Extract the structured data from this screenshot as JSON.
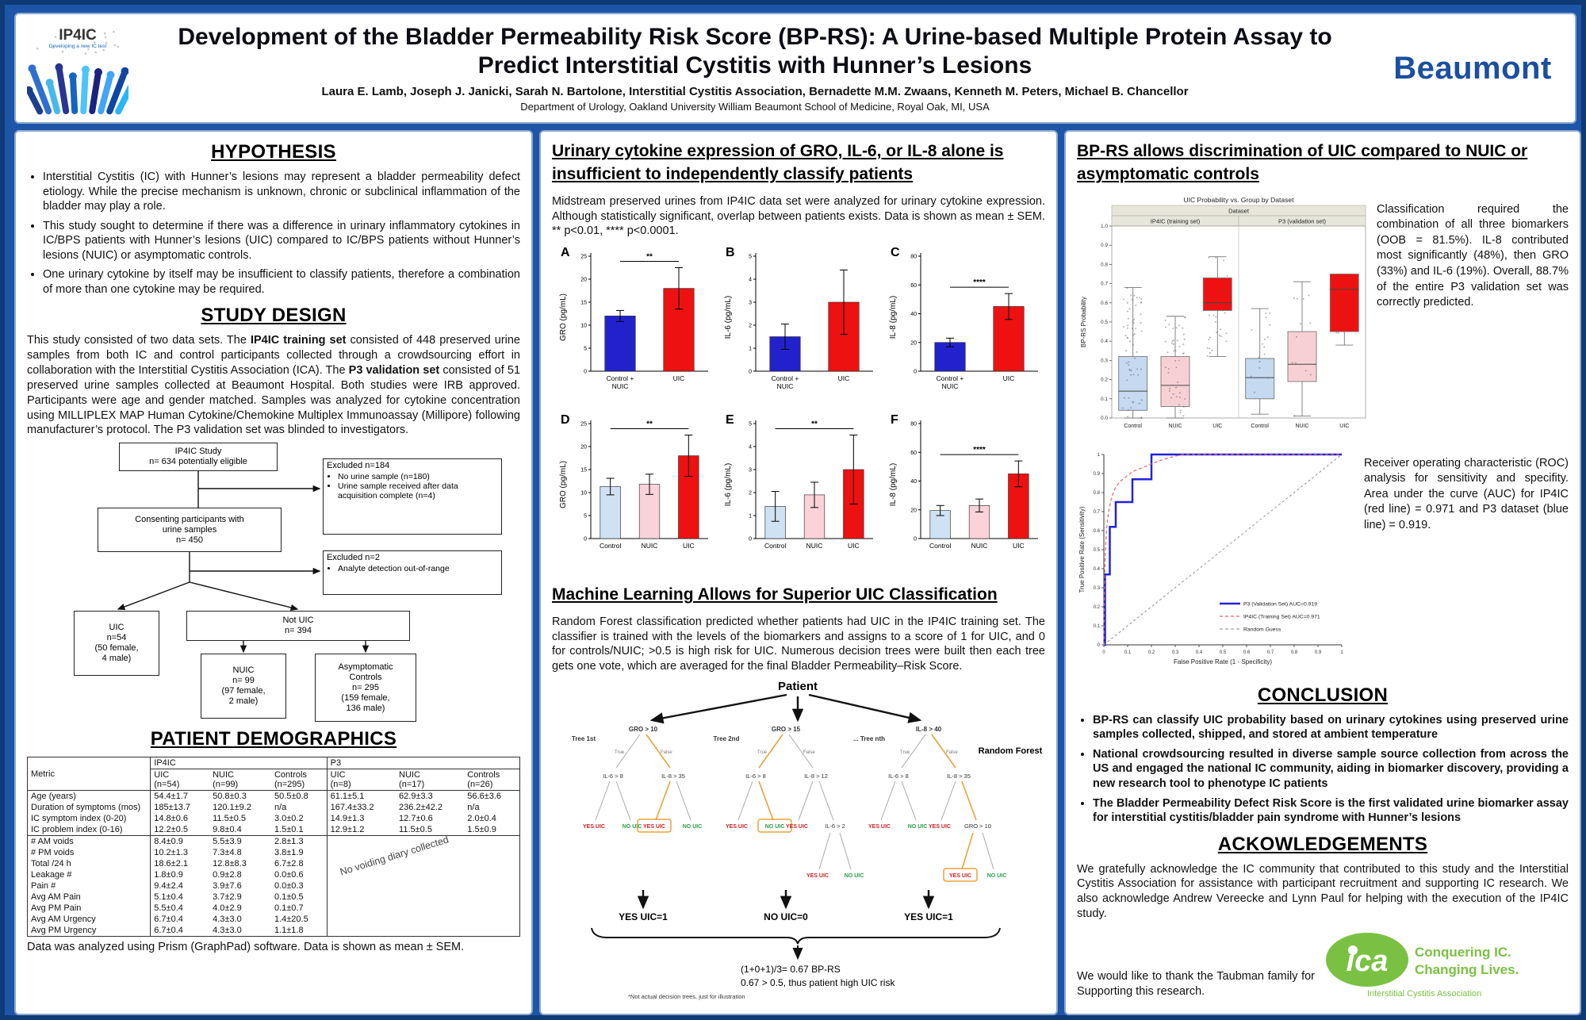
{
  "header": {
    "logo": {
      "text": "IP4IC",
      "sub": "Developing a new IC test"
    },
    "title1": "Development of the Bladder Permeability Risk Score (BP-RS): A Urine-based Multiple Protein Assay to",
    "title2": "Predict Interstitial Cystitis with Hunner’s Lesions",
    "authors": "Laura E. Lamb, Joseph J. Janicki, Sarah N. Bartolone, Interstitial Cystitis Association, Bernadette M.M. Zwaans,  Kenneth M. Peters, Michael B. Chancellor",
    "affiliation": "Department of Urology, Oakland University William Beaumont School of Medicine, Royal Oak, MI, USA",
    "brand": "Beaumont"
  },
  "left": {
    "hypothesis": {
      "title": "HYPOTHESIS",
      "bullets": [
        "Interstitial Cystitis (IC) with Hunner’s lesions may represent a bladder permeability defect etiology. While the precise mechanism is unknown, chronic or subclinical inflammation of the bladder may play a role.",
        "This study sought to determine if there was a difference in urinary inflammatory cytokines in IC/BPS patients with Hunner’s lesions (UIC) compared to IC/BPS patients without Hunner’s lesions (NUIC) or asymptomatic controls.",
        "One urinary cytokine by itself may be insufficient to classify patients, therefore a combination of more than one cytokine may be required."
      ]
    },
    "study": {
      "title": "STUDY DESIGN",
      "p1": "This study consisted of two data sets. The ",
      "b1": "IP4IC training set",
      "p2": " consisted of 448 preserved urine samples from both IC and control participants collected through a crowdsourcing effort in collaboration with the Interstitial Cystitis Association (ICA). The ",
      "b2": "P3 validation set",
      "p3": " consisted of 51 preserved urine samples collected at Beaumont Hospital. Both studies were IRB approved. Participants were age and gender matched. Samples was analyzed for cytokine concentration using MILLIPLEX MAP Human Cytokine/Chemokine Multiplex Immunoassay (Millipore) following manufacturer’s protocol. The P3 validation set was blinded to investigators."
    },
    "flowchart": {
      "ip4ic": [
        "IP4IC Study",
        "n= 634 potentially eligible"
      ],
      "excluded1_title": "Excluded n=184",
      "excluded1_bullets": [
        "No urine sample (n=180)",
        "Urine sample received after data acquisition complete (n=4)"
      ],
      "consenting": [
        "Consenting participants with",
        "urine samples",
        "n= 450"
      ],
      "excluded2_title": "Excluded n=2",
      "excluded2_bullets": [
        "Analyte detection out-of-range"
      ],
      "uic": [
        "UIC",
        "n=54",
        "(50 female,",
        "4 male)"
      ],
      "notuic": [
        "Not UIC",
        "n= 394"
      ],
      "nuic": [
        "NUIC",
        "n= 99",
        "(97 female,",
        "2 male)"
      ],
      "asym": [
        "Asymptomatic",
        "Controls",
        "n= 295",
        "(159 female,",
        "136 male)"
      ]
    },
    "demographics": {
      "title": "PATIENT DEMOGRAPHICS",
      "table": {
        "metric_header": "Metric",
        "group_headers": [
          "IP4IC",
          "P3"
        ],
        "sub_headers": [
          [
            "UIC",
            "(n=54)"
          ],
          [
            "NUIC",
            "(n=99)"
          ],
          [
            "Controls",
            "(n=295)"
          ],
          [
            "UIC",
            "(n=8)"
          ],
          [
            "NUIC",
            "(n=17)"
          ],
          [
            "Controls",
            "(n=26)"
          ]
        ],
        "rows": [
          [
            "Age (years)",
            "54.4±1.7",
            "50.8±0.3",
            "50.5±0.8",
            "61.1±5.1",
            "62.9±3.3",
            "56.6±3.6"
          ],
          [
            "Duration of symptoms (mos)",
            "185±13.7",
            "120.1±9.2",
            "n/a",
            "167.4±33.2",
            "236.2±42.2",
            "n/a"
          ],
          [
            "IC symptom index (0-20)",
            "14.8±0.6",
            "11.5±0.5",
            "3.0±0.2",
            "14.9±1.3",
            "12.7±0.6",
            "2.0±0.4"
          ],
          [
            "IC problem index (0-16)",
            "12.2±0.5",
            "9.8±0.4",
            "1.5±0.1",
            "12.9±1.2",
            "11.5±0.5",
            "1.5±0.9"
          ],
          [
            "# AM voids",
            "8.4±0.9",
            "5.5±3.9",
            "2.8±1.3",
            "",
            "",
            ""
          ],
          [
            "# PM voids",
            "10.2±1.3",
            "7.3±4.8",
            "3.8±1.9",
            "",
            "",
            ""
          ],
          [
            "Total /24 h",
            "18.6±2.1",
            "12.8±8.3",
            "6.7±2.8",
            "",
            "",
            ""
          ],
          [
            "Leakage #",
            "1.8±0.9",
            "0.9±2.8",
            "0.0±0.6",
            "",
            "",
            ""
          ],
          [
            "Pain #",
            "9.4±2.4",
            "3.9±7.6",
            "0.0±0.3",
            "",
            "",
            ""
          ],
          [
            "Avg AM Pain",
            "5.1±0.4",
            "3.7±2.9",
            "0.1±0.5",
            "",
            "",
            ""
          ],
          [
            "Avg PM Pain",
            "5.5±0.4",
            "4.0±2.9",
            "0.1±0.7",
            "",
            "",
            ""
          ],
          [
            "Avg AM Urgency",
            "6.7±0.4",
            "4.3±3.0",
            "1.4±20.5",
            "",
            "",
            ""
          ],
          [
            "Avg PM Urgency",
            "6.7±0.4",
            "4.3±3.0",
            "1.1±1.8",
            "",
            "",
            ""
          ]
        ],
        "diagonal_note": "No voiding diary collected"
      },
      "note": "Data was analyzed using Prism (GraphPad) software. Data is shown as mean ± SEM."
    }
  },
  "middle": {
    "banner": "Urinary cytokine expression of GRO, IL-6, or IL-8 alone is insufficient to independently classify patients",
    "intro": "Midstream preserved urines from IP4IC data set were analyzed for urinary cytokine expression. Although statistically significant, overlap between patients exists. Data is shown as mean ± SEM. ** p<0.01, **** p<0.0001.",
    "ml_title": "Machine Learning Allows for Superior UIC Classification",
    "ml_text": "Random Forest classification predicted whether patients had UIC in the IP4IC training set. The classifier is trained with the levels of the biomarkers and assigns to a score of 1 for UIC, and 0 for controls/NUIC; >0.5 is high risk for UIC. Numerous decision trees were built then each tree gets one vote, which are averaged for the final Bladder Permeability–Risk Score.",
    "forest": {
      "patient_label": "Patient",
      "forest_label": "Random Forest",
      "tree_labels": [
        "Tree 1st",
        "Tree 2nd",
        "... Tree nth"
      ],
      "true_label": "True",
      "false_label": "False",
      "yes_leaf": "YES UIC",
      "no_leaf": "NO UIC",
      "trees": [
        {
          "root": "GRO > 10",
          "left": "IL-6 > 8",
          "right": "IL-8 > 35",
          "boxed": "right-left",
          "sub": null
        },
        {
          "root": "GRO > 15",
          "left": "IL-6 > 8",
          "right": "IL-8 > 12",
          "boxed": "left-right",
          "sub": {
            "pos": "right-right",
            "label": "IL-6 > 2"
          }
        },
        {
          "root": "IL-8 > 40",
          "left": "IL-6 > 8",
          "right": "IL-8 > 35",
          "boxed": "sub-left",
          "sub": {
            "pos": "right-right",
            "label": "GRO > 10"
          }
        }
      ],
      "votes": [
        "YES UIC=1",
        "NO UIC=0",
        "YES UIC=1"
      ],
      "formula_line1": "(1+0+1)/3= 0.67 BP-RS",
      "formula_line2": "0.67 > 0.5, thus patient high UIC risk",
      "footnote": "*Not actual decision trees, just for illustration"
    }
  },
  "right": {
    "banner": "BP-RS allows discrimination of UIC compared to NUIC or asymptomatic controls",
    "box_text": "Classification required the combination of all three biomarkers (OOB = 81.5%). IL-8 contributed most significantly (48%), then GRO (33%) and IL-6 (19%). Overall, 88.7% of the entire P3 validation set was correctly predicted.",
    "roc_text": "Receiver operating characteristic (ROC) analysis for sensitivity and specifity.  Area under the curve (AUC) for IP4IC (red line) = 0.971 and P3 dataset (blue line) = 0.919.",
    "conclusion": {
      "title": "CONCLUSION",
      "bullets": [
        "BP-RS can classify UIC probability based on urinary cytokines using preserved urine samples collected, shipped, and stored at ambient temperature",
        "National crowdsourcing resulted in diverse sample source collection from across the US and engaged the national IC community, aiding in biomarker discovery, providing a new research tool to phenotype IC patients",
        "The Bladder Permeability Defect Risk Score is the first validated urine biomarker assay for interstitial cystitis/bladder pain syndrome with Hunner’s lesions"
      ]
    },
    "ack": {
      "title": "ACKOWLEDGEMENTS",
      "p1": "We gratefully acknowledge the IC community that contributed to this study and the Interstitial Cystitis Association for assistance with participant recruitment and supporting IC research. We also acknowledge Andrew Vereecke and Lynn Paul for helping with the execution of the IP4IC study.",
      "p2": "We would like to thank the Taubman family for Supporting this research.",
      "ica_logo": {
        "abbr": "ica",
        "line1": "Conquering IC.",
        "line2": "Changing Lives.",
        "line3": "Interstitial Cystitis Association",
        "green": "#7ac143"
      }
    }
  },
  "chart_data": [
    {
      "id": "A",
      "type": "bar",
      "ylabel": "GRO (pg/mL)",
      "ylim": [
        0,
        25
      ],
      "yticks": [
        0,
        5,
        10,
        15,
        20,
        25
      ],
      "categories": [
        "Control +\nNUIC",
        "UIC"
      ],
      "values": [
        12,
        18
      ],
      "errors": [
        1.2,
        4.5
      ],
      "colors": [
        "#2222cc",
        "#ee1111"
      ],
      "significance": "**"
    },
    {
      "id": "B",
      "type": "bar",
      "ylabel": "IL-6 (pg/mL)",
      "ylim": [
        0,
        5
      ],
      "yticks": [
        0,
        1,
        2,
        3,
        4,
        5
      ],
      "categories": [
        "Control +\nNUIC",
        "UIC"
      ],
      "values": [
        1.5,
        3.0
      ],
      "errors": [
        0.55,
        1.4
      ],
      "colors": [
        "#2222cc",
        "#ee1111"
      ],
      "significance": ""
    },
    {
      "id": "C",
      "type": "bar",
      "ylabel": "IL-8 (pg/mL)",
      "ylim": [
        0,
        80
      ],
      "yticks": [
        0,
        20,
        40,
        60,
        80
      ],
      "categories": [
        "Control +\nNUIC",
        "UIC"
      ],
      "values": [
        20,
        45
      ],
      "errors": [
        3,
        9
      ],
      "colors": [
        "#2222cc",
        "#ee1111"
      ],
      "significance": "****"
    },
    {
      "id": "D",
      "type": "bar",
      "ylabel": "GRO (pg/mL)",
      "ylim": [
        0,
        25
      ],
      "yticks": [
        0,
        5,
        10,
        15,
        20,
        25
      ],
      "categories": [
        "Control",
        "NUIC",
        "UIC"
      ],
      "values": [
        11.3,
        11.8,
        18
      ],
      "errors": [
        1.8,
        2.2,
        4.5
      ],
      "colors": [
        "#cfe2f3",
        "#f9d3d9",
        "#ee1111"
      ],
      "significance": "**"
    },
    {
      "id": "E",
      "type": "bar",
      "ylabel": "IL-6 (pg/mL)",
      "ylim": [
        0,
        5
      ],
      "yticks": [
        0,
        1,
        2,
        3,
        4,
        5
      ],
      "categories": [
        "Control",
        "NUIC",
        "UIC"
      ],
      "values": [
        1.4,
        1.9,
        3.0
      ],
      "errors": [
        0.65,
        0.55,
        1.5
      ],
      "colors": [
        "#cfe2f3",
        "#f9d3d9",
        "#ee1111"
      ],
      "significance": "**"
    },
    {
      "id": "F",
      "type": "bar",
      "ylabel": "IL-8 (pg/mL)",
      "ylim": [
        0,
        80
      ],
      "yticks": [
        0,
        20,
        40,
        60,
        80
      ],
      "categories": [
        "Control",
        "NUIC",
        "UIC"
      ],
      "values": [
        19.5,
        23,
        45
      ],
      "errors": [
        3.5,
        4.5,
        9
      ],
      "colors": [
        "#cfe2f3",
        "#f9d3d9",
        "#ee1111"
      ],
      "significance": "****"
    },
    {
      "id": "bp_probability",
      "type": "boxplot",
      "title": "UIC Probability vs. Group by Dataset",
      "band_label": "Dataset",
      "ylabel": "BP-RS Probability",
      "ylim": [
        0,
        1
      ],
      "panels": [
        {
          "label": "IP4IC (training set)",
          "groups": [
            {
              "name": "Control",
              "color": "#c5d9f1",
              "lo": 0.0,
              "q1": 0.04,
              "med": 0.14,
              "q3": 0.32,
              "hi": 0.68
            },
            {
              "name": "NUIC",
              "color": "#f7d0d5",
              "lo": 0.0,
              "q1": 0.06,
              "med": 0.17,
              "q3": 0.32,
              "hi": 0.53
            },
            {
              "name": "UIC",
              "color": "#ee1111",
              "lo": 0.32,
              "q1": 0.56,
              "med": 0.6,
              "q3": 0.73,
              "hi": 0.84
            }
          ]
        },
        {
          "label": "P3 (validation set)",
          "groups": [
            {
              "name": "Control",
              "color": "#c5d9f1",
              "lo": 0.02,
              "q1": 0.1,
              "med": 0.21,
              "q3": 0.31,
              "hi": 0.57
            },
            {
              "name": "NUIC",
              "color": "#f7d0d5",
              "lo": 0.01,
              "q1": 0.19,
              "med": 0.28,
              "q3": 0.45,
              "hi": 0.71
            },
            {
              "name": "UIC",
              "color": "#ee1111",
              "lo": 0.38,
              "q1": 0.45,
              "med": 0.67,
              "q3": 0.75,
              "hi": 0.75
            }
          ]
        }
      ]
    },
    {
      "id": "roc",
      "type": "line",
      "xlabel": "False Positive Rate (1 - Specificity)",
      "ylabel": "True Positive Rate (Sensitivity)",
      "xlim": [
        0,
        1
      ],
      "ylim": [
        0,
        1
      ],
      "series": [
        {
          "name": "P3 (Validation Set)  AUC=0.919",
          "color": "#2222dd",
          "style": "solid",
          "points": [
            [
              0,
              0
            ],
            [
              0.005,
              0
            ],
            [
              0.005,
              0.37
            ],
            [
              0.025,
              0.37
            ],
            [
              0.025,
              0.62
            ],
            [
              0.05,
              0.62
            ],
            [
              0.05,
              0.75
            ],
            [
              0.12,
              0.75
            ],
            [
              0.12,
              0.87
            ],
            [
              0.2,
              0.87
            ],
            [
              0.2,
              1
            ],
            [
              1,
              1
            ]
          ]
        },
        {
          "name": "IP4IC (Training Set)  AUC=0.971",
          "color": "#dd6666",
          "style": "dashed",
          "points": [
            [
              0,
              0
            ],
            [
              0.002,
              0.25
            ],
            [
              0.005,
              0.45
            ],
            [
              0.01,
              0.58
            ],
            [
              0.015,
              0.65
            ],
            [
              0.02,
              0.7
            ],
            [
              0.03,
              0.76
            ],
            [
              0.04,
              0.8
            ],
            [
              0.05,
              0.83
            ],
            [
              0.07,
              0.86
            ],
            [
              0.09,
              0.88
            ],
            [
              0.11,
              0.9
            ],
            [
              0.13,
              0.915
            ],
            [
              0.16,
              0.93
            ],
            [
              0.2,
              0.95
            ],
            [
              0.24,
              0.97
            ],
            [
              0.28,
              0.985
            ],
            [
              0.33,
              1
            ],
            [
              1,
              1
            ]
          ]
        },
        {
          "name": "Random Guess",
          "color": "#888888",
          "style": "dashed",
          "points": [
            [
              0,
              0
            ],
            [
              1,
              1
            ]
          ]
        }
      ]
    }
  ]
}
